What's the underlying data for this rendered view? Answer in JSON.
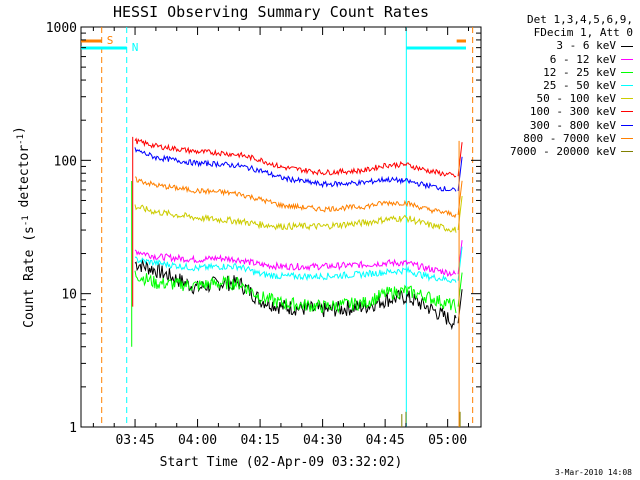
{
  "chart_data": {
    "type": "line",
    "title": "HESSI Observing Summary Count Rates",
    "xlabel": "Start Time (02-Apr-09 03:32:02)",
    "ylabel": "Count Rate (s⁻¹ detector⁻¹)",
    "yscale": "log",
    "ylim": [
      1,
      1000
    ],
    "xlim": [
      "03:32",
      "05:08"
    ],
    "xticks": [
      "03:45",
      "04:00",
      "04:15",
      "04:30",
      "04:45",
      "05:00"
    ],
    "yticks": [
      "1",
      "10",
      "100",
      "1000"
    ],
    "legend_position": "right, outside plot",
    "legend_header": [
      "Det 1,3,4,5,6,9,",
      "FDecim 1, Att 0"
    ],
    "series": [
      {
        "name": "3 - 6 keV",
        "color": "#000000",
        "points": [
          [
            "03:45",
            17
          ],
          [
            "03:50",
            15
          ],
          [
            "04:00",
            11
          ],
          [
            "04:05",
            12
          ],
          [
            "04:10",
            12
          ],
          [
            "04:15",
            9
          ],
          [
            "04:20",
            8
          ],
          [
            "04:30",
            7.5
          ],
          [
            "04:40",
            8
          ],
          [
            "04:45",
            9
          ],
          [
            "04:50",
            9.5
          ],
          [
            "04:55",
            8
          ],
          [
            "05:02",
            6
          ]
        ]
      },
      {
        "name": "6 - 12 keV",
        "color": "#ff00ff",
        "points": [
          [
            "03:45",
            21
          ],
          [
            "03:50",
            19
          ],
          [
            "04:00",
            18
          ],
          [
            "04:05",
            18.5
          ],
          [
            "04:10",
            18
          ],
          [
            "04:15",
            16.5
          ],
          [
            "04:20",
            16
          ],
          [
            "04:30",
            16
          ],
          [
            "04:40",
            16.5
          ],
          [
            "04:45",
            17
          ],
          [
            "04:50",
            17
          ],
          [
            "04:55",
            15.5
          ],
          [
            "05:02",
            14
          ]
        ]
      },
      {
        "name": "12 - 25 keV",
        "color": "#00ff00",
        "points": [
          [
            "03:45",
            14
          ],
          [
            "03:50",
            12
          ],
          [
            "04:00",
            11.5
          ],
          [
            "04:05",
            12
          ],
          [
            "04:10",
            12
          ],
          [
            "04:15",
            9.5
          ],
          [
            "04:20",
            8.5
          ],
          [
            "04:30",
            8
          ],
          [
            "04:40",
            8.5
          ],
          [
            "04:45",
            10
          ],
          [
            "04:50",
            10.5
          ],
          [
            "04:55",
            9.5
          ],
          [
            "05:02",
            8
          ]
        ]
      },
      {
        "name": "25 - 50 keV",
        "color": "#00ffff",
        "points": [
          [
            "03:45",
            18
          ],
          [
            "03:50",
            17
          ],
          [
            "04:00",
            15.5
          ],
          [
            "04:05",
            16
          ],
          [
            "04:10",
            16
          ],
          [
            "04:15",
            14
          ],
          [
            "04:20",
            13.5
          ],
          [
            "04:30",
            13.5
          ],
          [
            "04:40",
            14
          ],
          [
            "04:45",
            14.5
          ],
          [
            "04:50",
            15
          ],
          [
            "04:55",
            13.5
          ],
          [
            "05:02",
            12.5
          ]
        ]
      },
      {
        "name": "50 - 100 keV",
        "color": "#cccc00",
        "points": [
          [
            "03:45",
            45
          ],
          [
            "03:50",
            41
          ],
          [
            "04:00",
            37
          ],
          [
            "04:05",
            36
          ],
          [
            "04:10",
            35
          ],
          [
            "04:15",
            33
          ],
          [
            "04:20",
            32
          ],
          [
            "04:30",
            32
          ],
          [
            "04:40",
            34
          ],
          [
            "04:45",
            36
          ],
          [
            "04:50",
            37
          ],
          [
            "04:55",
            33
          ],
          [
            "05:02",
            30
          ]
        ]
      },
      {
        "name": "100 - 300 keV",
        "color": "#ff0000",
        "points": [
          [
            "03:45",
            140
          ],
          [
            "03:50",
            128
          ],
          [
            "04:00",
            116
          ],
          [
            "04:05",
            114
          ],
          [
            "04:10",
            110
          ],
          [
            "04:15",
            101
          ],
          [
            "04:20",
            89
          ],
          [
            "04:30",
            81
          ],
          [
            "04:40",
            84
          ],
          [
            "04:45",
            92
          ],
          [
            "04:50",
            93
          ],
          [
            "04:55",
            84
          ],
          [
            "05:02",
            76
          ]
        ]
      },
      {
        "name": "300 - 800 keV",
        "color": "#0000ff",
        "points": [
          [
            "03:45",
            120
          ],
          [
            "03:50",
            105
          ],
          [
            "04:00",
            95
          ],
          [
            "04:05",
            94
          ],
          [
            "04:10",
            91
          ],
          [
            "04:15",
            84
          ],
          [
            "04:20",
            74
          ],
          [
            "04:30",
            66
          ],
          [
            "04:40",
            68
          ],
          [
            "04:45",
            72
          ],
          [
            "04:50",
            70
          ],
          [
            "04:55",
            65
          ],
          [
            "05:02",
            59
          ]
        ]
      },
      {
        "name": "800 - 7000 keV",
        "color": "#ff8000",
        "points": [
          [
            "03:45",
            72
          ],
          [
            "03:50",
            65
          ],
          [
            "04:00",
            59
          ],
          [
            "04:05",
            58
          ],
          [
            "04:10",
            56
          ],
          [
            "04:15",
            51
          ],
          [
            "04:20",
            46
          ],
          [
            "04:30",
            43
          ],
          [
            "04:40",
            45
          ],
          [
            "04:45",
            48
          ],
          [
            "04:50",
            48
          ],
          [
            "04:55",
            43
          ],
          [
            "05:02",
            39
          ]
        ]
      },
      {
        "name": "7000 - 20000 keV",
        "color": "#808000",
        "points": []
      }
    ],
    "annotations": [
      {
        "text": "S",
        "color": "#ff8000"
      },
      {
        "text": "N",
        "color": "#00ffff"
      }
    ],
    "timestamp": "3-Mar-2010 14:08"
  }
}
